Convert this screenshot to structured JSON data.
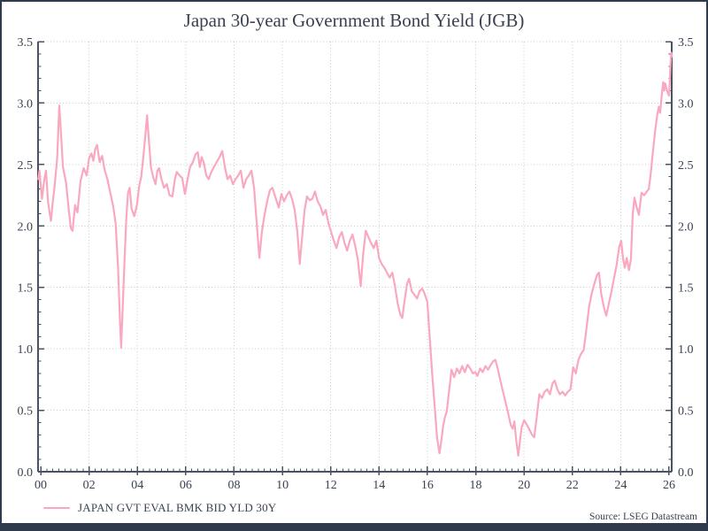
{
  "title": "Japan 30-year Government Bond Yield (JGB)",
  "legend": {
    "label": "JAPAN GVT EVAL BMK BID YLD 30Y"
  },
  "source": "Source: LSEG Datastream",
  "colors": {
    "line": "#F9A8BF",
    "text": "#3A4250",
    "axis": "#4A5361",
    "grid": "#CBCBCB",
    "frame": "#2F3B4C",
    "background": "#FFFFFF"
  },
  "chart_data": {
    "type": "line",
    "title": "Japan 30-year Government Bond Yield (JGB)",
    "xlabel": "",
    "ylabel": "",
    "x_range": [
      1999.89,
      2026.11
    ],
    "ylim": [
      0,
      3.5
    ],
    "x_tick_years": [
      2000,
      2002,
      2004,
      2006,
      2008,
      2010,
      2012,
      2014,
      2016,
      2018,
      2020,
      2022,
      2024,
      2026
    ],
    "x_tick_labels": [
      "00",
      "02",
      "04",
      "06",
      "08",
      "10",
      "12",
      "14",
      "16",
      "18",
      "20",
      "22",
      "24",
      "26"
    ],
    "y_ticks": [
      0,
      0.5,
      1,
      1.5,
      2,
      2.5,
      3,
      3.5
    ],
    "y_tick_labels": [
      "0.0",
      "0.5",
      "1.0",
      "1.5",
      "2.0",
      "2.5",
      "3.0",
      "3.5"
    ],
    "x_minor_step": 0.25,
    "y_minor_step": 0.1,
    "grid": "dotted at major ticks",
    "legend_position": "bottom-left",
    "axes": "left and right y axes, identical scale",
    "series": [
      {
        "name": "JAPAN GVT EVAL BMK BID YLD 30Y",
        "color": "#F9A8BF",
        "points": [
          [
            1999.9,
            2.38
          ],
          [
            1999.95,
            2.45
          ],
          [
            2000.05,
            2.22
          ],
          [
            2000.15,
            2.38
          ],
          [
            2000.22,
            2.45
          ],
          [
            2000.3,
            2.2
          ],
          [
            2000.42,
            2.04
          ],
          [
            2000.5,
            2.2
          ],
          [
            2000.58,
            2.33
          ],
          [
            2000.68,
            2.55
          ],
          [
            2000.77,
            2.98
          ],
          [
            2000.85,
            2.72
          ],
          [
            2000.92,
            2.48
          ],
          [
            2001.05,
            2.35
          ],
          [
            2001.15,
            2.15
          ],
          [
            2001.25,
            1.98
          ],
          [
            2001.32,
            1.96
          ],
          [
            2001.42,
            2.17
          ],
          [
            2001.52,
            2.11
          ],
          [
            2001.65,
            2.37
          ],
          [
            2001.78,
            2.47
          ],
          [
            2001.9,
            2.41
          ],
          [
            2002.0,
            2.55
          ],
          [
            2002.1,
            2.59
          ],
          [
            2002.18,
            2.53
          ],
          [
            2002.25,
            2.62
          ],
          [
            2002.33,
            2.66
          ],
          [
            2002.44,
            2.52
          ],
          [
            2002.54,
            2.57
          ],
          [
            2002.65,
            2.45
          ],
          [
            2002.76,
            2.38
          ],
          [
            2002.88,
            2.27
          ],
          [
            2003.0,
            2.16
          ],
          [
            2003.1,
            2.02
          ],
          [
            2003.2,
            1.66
          ],
          [
            2003.28,
            1.22
          ],
          [
            2003.33,
            1.01
          ],
          [
            2003.4,
            1.37
          ],
          [
            2003.47,
            1.73
          ],
          [
            2003.54,
            2.06
          ],
          [
            2003.61,
            2.27
          ],
          [
            2003.68,
            2.31
          ],
          [
            2003.76,
            2.14
          ],
          [
            2003.87,
            2.08
          ],
          [
            2003.98,
            2.17
          ],
          [
            2004.08,
            2.33
          ],
          [
            2004.16,
            2.4
          ],
          [
            2004.24,
            2.55
          ],
          [
            2004.32,
            2.72
          ],
          [
            2004.4,
            2.9
          ],
          [
            2004.48,
            2.69
          ],
          [
            2004.56,
            2.48
          ],
          [
            2004.65,
            2.4
          ],
          [
            2004.75,
            2.34
          ],
          [
            2004.83,
            2.45
          ],
          [
            2004.9,
            2.47
          ],
          [
            2005.0,
            2.38
          ],
          [
            2005.1,
            2.31
          ],
          [
            2005.22,
            2.34
          ],
          [
            2005.33,
            2.25
          ],
          [
            2005.45,
            2.24
          ],
          [
            2005.55,
            2.38
          ],
          [
            2005.63,
            2.44
          ],
          [
            2005.75,
            2.41
          ],
          [
            2005.85,
            2.39
          ],
          [
            2005.97,
            2.26
          ],
          [
            2006.08,
            2.38
          ],
          [
            2006.18,
            2.48
          ],
          [
            2006.3,
            2.52
          ],
          [
            2006.4,
            2.58
          ],
          [
            2006.5,
            2.6
          ],
          [
            2006.58,
            2.48
          ],
          [
            2006.66,
            2.56
          ],
          [
            2006.74,
            2.52
          ],
          [
            2006.85,
            2.41
          ],
          [
            2006.95,
            2.38
          ],
          [
            2007.06,
            2.44
          ],
          [
            2007.17,
            2.48
          ],
          [
            2007.28,
            2.52
          ],
          [
            2007.4,
            2.56
          ],
          [
            2007.51,
            2.61
          ],
          [
            2007.62,
            2.48
          ],
          [
            2007.73,
            2.38
          ],
          [
            2007.84,
            2.41
          ],
          [
            2007.95,
            2.34
          ],
          [
            2008.06,
            2.38
          ],
          [
            2008.17,
            2.41
          ],
          [
            2008.28,
            2.45
          ],
          [
            2008.39,
            2.31
          ],
          [
            2008.5,
            2.38
          ],
          [
            2008.61,
            2.41
          ],
          [
            2008.72,
            2.45
          ],
          [
            2008.83,
            2.31
          ],
          [
            2008.93,
            2.04
          ],
          [
            2009.05,
            1.74
          ],
          [
            2009.15,
            1.95
          ],
          [
            2009.26,
            2.09
          ],
          [
            2009.37,
            2.2
          ],
          [
            2009.48,
            2.29
          ],
          [
            2009.59,
            2.31
          ],
          [
            2009.7,
            2.24
          ],
          [
            2009.85,
            2.15
          ],
          [
            2009.96,
            2.26
          ],
          [
            2010.07,
            2.2
          ],
          [
            2010.18,
            2.25
          ],
          [
            2010.29,
            2.28
          ],
          [
            2010.4,
            2.22
          ],
          [
            2010.51,
            2.13
          ],
          [
            2010.62,
            1.95
          ],
          [
            2010.72,
            1.69
          ],
          [
            2010.82,
            1.92
          ],
          [
            2010.92,
            2.13
          ],
          [
            2011.02,
            2.24
          ],
          [
            2011.13,
            2.21
          ],
          [
            2011.24,
            2.22
          ],
          [
            2011.35,
            2.28
          ],
          [
            2011.46,
            2.2
          ],
          [
            2011.57,
            2.16
          ],
          [
            2011.68,
            2.09
          ],
          [
            2011.79,
            2.13
          ],
          [
            2011.91,
            2.02
          ],
          [
            2012.02,
            1.95
          ],
          [
            2012.13,
            1.88
          ],
          [
            2012.24,
            1.82
          ],
          [
            2012.35,
            1.91
          ],
          [
            2012.46,
            1.95
          ],
          [
            2012.57,
            1.86
          ],
          [
            2012.68,
            1.8
          ],
          [
            2012.79,
            1.88
          ],
          [
            2012.9,
            1.93
          ],
          [
            2013.01,
            1.84
          ],
          [
            2013.12,
            1.73
          ],
          [
            2013.24,
            1.51
          ],
          [
            2013.34,
            1.77
          ],
          [
            2013.45,
            1.96
          ],
          [
            2013.56,
            1.91
          ],
          [
            2013.67,
            1.86
          ],
          [
            2013.78,
            1.82
          ],
          [
            2013.89,
            1.88
          ],
          [
            2014.0,
            1.74
          ],
          [
            2014.11,
            1.69
          ],
          [
            2014.22,
            1.66
          ],
          [
            2014.33,
            1.62
          ],
          [
            2014.44,
            1.58
          ],
          [
            2014.55,
            1.62
          ],
          [
            2014.66,
            1.51
          ],
          [
            2014.77,
            1.37
          ],
          [
            2014.88,
            1.28
          ],
          [
            2014.96,
            1.25
          ],
          [
            2015.06,
            1.4
          ],
          [
            2015.16,
            1.53
          ],
          [
            2015.24,
            1.57
          ],
          [
            2015.35,
            1.47
          ],
          [
            2015.46,
            1.44
          ],
          [
            2015.57,
            1.41
          ],
          [
            2015.68,
            1.47
          ],
          [
            2015.79,
            1.49
          ],
          [
            2015.9,
            1.44
          ],
          [
            2016.0,
            1.38
          ],
          [
            2016.1,
            1.08
          ],
          [
            2016.2,
            0.79
          ],
          [
            2016.3,
            0.54
          ],
          [
            2016.4,
            0.28
          ],
          [
            2016.5,
            0.15
          ],
          [
            2016.58,
            0.26
          ],
          [
            2016.65,
            0.37
          ],
          [
            2016.72,
            0.44
          ],
          [
            2016.8,
            0.49
          ],
          [
            2016.9,
            0.66
          ],
          [
            2017.0,
            0.83
          ],
          [
            2017.11,
            0.77
          ],
          [
            2017.22,
            0.84
          ],
          [
            2017.33,
            0.8
          ],
          [
            2017.44,
            0.86
          ],
          [
            2017.55,
            0.81
          ],
          [
            2017.66,
            0.87
          ],
          [
            2017.77,
            0.84
          ],
          [
            2017.88,
            0.8
          ],
          [
            2017.98,
            0.81
          ],
          [
            2018.07,
            0.78
          ],
          [
            2018.18,
            0.84
          ],
          [
            2018.29,
            0.81
          ],
          [
            2018.4,
            0.86
          ],
          [
            2018.51,
            0.83
          ],
          [
            2018.62,
            0.87
          ],
          [
            2018.73,
            0.9
          ],
          [
            2018.81,
            0.91
          ],
          [
            2018.91,
            0.84
          ],
          [
            2019.02,
            0.74
          ],
          [
            2019.13,
            0.65
          ],
          [
            2019.24,
            0.56
          ],
          [
            2019.35,
            0.47
          ],
          [
            2019.45,
            0.38
          ],
          [
            2019.53,
            0.35
          ],
          [
            2019.6,
            0.41
          ],
          [
            2019.68,
            0.25
          ],
          [
            2019.76,
            0.13
          ],
          [
            2019.83,
            0.25
          ],
          [
            2019.9,
            0.36
          ],
          [
            2020.0,
            0.42
          ],
          [
            2020.12,
            0.38
          ],
          [
            2020.23,
            0.34
          ],
          [
            2020.33,
            0.3
          ],
          [
            2020.42,
            0.28
          ],
          [
            2020.52,
            0.44
          ],
          [
            2020.63,
            0.63
          ],
          [
            2020.74,
            0.6
          ],
          [
            2020.85,
            0.65
          ],
          [
            2020.96,
            0.67
          ],
          [
            2021.07,
            0.63
          ],
          [
            2021.18,
            0.72
          ],
          [
            2021.27,
            0.74
          ],
          [
            2021.38,
            0.67
          ],
          [
            2021.48,
            0.63
          ],
          [
            2021.59,
            0.65
          ],
          [
            2021.7,
            0.62
          ],
          [
            2021.81,
            0.65
          ],
          [
            2021.92,
            0.67
          ],
          [
            2022.03,
            0.85
          ],
          [
            2022.14,
            0.8
          ],
          [
            2022.25,
            0.91
          ],
          [
            2022.36,
            0.96
          ],
          [
            2022.47,
            0.99
          ],
          [
            2022.58,
            1.16
          ],
          [
            2022.69,
            1.34
          ],
          [
            2022.8,
            1.45
          ],
          [
            2022.91,
            1.53
          ],
          [
            2023.02,
            1.6
          ],
          [
            2023.1,
            1.62
          ],
          [
            2023.19,
            1.45
          ],
          [
            2023.3,
            1.34
          ],
          [
            2023.4,
            1.27
          ],
          [
            2023.51,
            1.37
          ],
          [
            2023.62,
            1.47
          ],
          [
            2023.72,
            1.57
          ],
          [
            2023.83,
            1.68
          ],
          [
            2023.94,
            1.83
          ],
          [
            2024.02,
            1.88
          ],
          [
            2024.1,
            1.73
          ],
          [
            2024.17,
            1.66
          ],
          [
            2024.25,
            1.74
          ],
          [
            2024.34,
            1.64
          ],
          [
            2024.42,
            1.73
          ],
          [
            2024.5,
            2.1
          ],
          [
            2024.57,
            2.23
          ],
          [
            2024.65,
            2.16
          ],
          [
            2024.75,
            2.09
          ],
          [
            2024.86,
            2.27
          ],
          [
            2024.97,
            2.25
          ],
          [
            2025.08,
            2.28
          ],
          [
            2025.16,
            2.3
          ],
          [
            2025.24,
            2.42
          ],
          [
            2025.33,
            2.6
          ],
          [
            2025.43,
            2.78
          ],
          [
            2025.51,
            2.9
          ],
          [
            2025.58,
            2.97
          ],
          [
            2025.63,
            2.92
          ],
          [
            2025.7,
            3.07
          ],
          [
            2025.76,
            3.17
          ],
          [
            2025.8,
            3.1
          ],
          [
            2025.84,
            3.16
          ],
          [
            2025.89,
            3.12
          ],
          [
            2025.95,
            3.08
          ],
          [
            2026.0,
            3.06
          ],
          [
            2026.05,
            3.28
          ],
          [
            2026.09,
            3.41
          ],
          [
            2026.12,
            3.38
          ]
        ]
      }
    ]
  }
}
